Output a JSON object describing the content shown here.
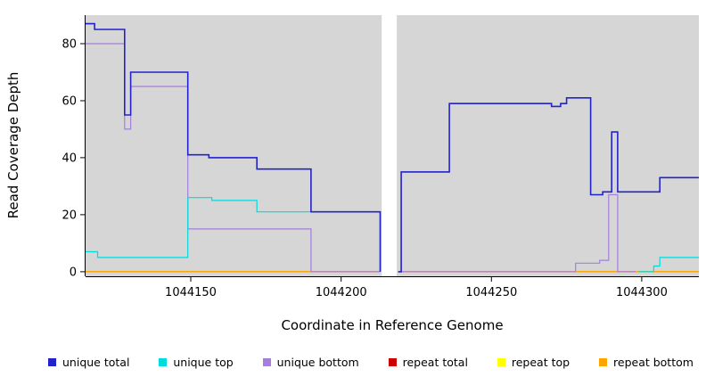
{
  "chart_data": {
    "type": "line",
    "step": true,
    "title": "",
    "xlabel": "Coordinate in Reference Genome",
    "ylabel": "Read Coverage Depth",
    "xlim": [
      1044115,
      1044319
    ],
    "ylim": [
      -1.6,
      90
    ],
    "x_ticks": [
      1044150,
      1044200,
      1044250,
      1044300
    ],
    "y_ticks": [
      0,
      20,
      40,
      60,
      80
    ],
    "grid": false,
    "legend_position": "bottom",
    "panel_background": "#d6d6d6",
    "axis_color": "#000000",
    "gap_region": {
      "x0": 1044213.5,
      "x1": 1044218.5,
      "color": "#ffffff"
    },
    "series": [
      {
        "name": "unique total",
        "color": "#2323cc",
        "width": 1.6,
        "zorder": 6,
        "segments": [
          [
            [
              1044115,
              87
            ],
            [
              1044118,
              85
            ],
            [
              1044128,
              55
            ],
            [
              1044130,
              70
            ],
            [
              1044149,
              41
            ],
            [
              1044156,
              40
            ],
            [
              1044172,
              36
            ],
            [
              1044190,
              21
            ],
            [
              1044213,
              0
            ]
          ],
          [
            [
              1044219,
              0
            ],
            [
              1044220,
              35
            ],
            [
              1044236,
              59
            ],
            [
              1044270,
              58
            ],
            [
              1044273,
              59
            ],
            [
              1044275,
              61
            ],
            [
              1044283,
              27
            ],
            [
              1044287,
              28
            ],
            [
              1044290,
              49
            ],
            [
              1044292,
              28
            ],
            [
              1044306,
              33
            ],
            [
              1044319,
              33
            ]
          ]
        ]
      },
      {
        "name": "unique top",
        "color": "#00dcdc",
        "width": 1.2,
        "zorder": 5,
        "segments": [
          [
            [
              1044115,
              7
            ],
            [
              1044119,
              5
            ],
            [
              1044149,
              26
            ],
            [
              1044157,
              25
            ],
            [
              1044172,
              21
            ],
            [
              1044213,
              0
            ]
          ],
          [
            [
              1044299,
              0
            ],
            [
              1044304,
              2
            ],
            [
              1044306,
              5
            ],
            [
              1044319,
              5
            ]
          ]
        ]
      },
      {
        "name": "unique bottom",
        "color": "#a47fdc",
        "width": 1.2,
        "zorder": 4,
        "segments": [
          [
            [
              1044115,
              80
            ],
            [
              1044128,
              50
            ],
            [
              1044130,
              65
            ],
            [
              1044149,
              15
            ],
            [
              1044190,
              0
            ],
            [
              1044213,
              0
            ]
          ],
          [
            [
              1044219,
              0
            ],
            [
              1044278,
              3
            ],
            [
              1044286,
              4
            ],
            [
              1044289,
              27
            ],
            [
              1044292,
              0
            ],
            [
              1044298,
              0
            ]
          ]
        ]
      },
      {
        "name": "repeat total",
        "color": "#cc0000",
        "width": 1.2,
        "zorder": 1,
        "segments": [
          [
            [
              1044115,
              0
            ],
            [
              1044213,
              0
            ]
          ],
          [
            [
              1044219,
              0
            ],
            [
              1044319,
              0
            ]
          ]
        ]
      },
      {
        "name": "repeat top",
        "color": "#ffff00",
        "width": 1.2,
        "zorder": 2,
        "segments": [
          [
            [
              1044115,
              0
            ],
            [
              1044213,
              0
            ]
          ],
          [
            [
              1044219,
              0
            ],
            [
              1044319,
              0
            ]
          ]
        ]
      },
      {
        "name": "repeat bottom",
        "color": "#ffa500",
        "width": 1.2,
        "zorder": 3,
        "segments": [
          [
            [
              1044115,
              0
            ],
            [
              1044213,
              0
            ]
          ],
          [
            [
              1044219,
              0
            ],
            [
              1044319,
              0
            ]
          ]
        ]
      }
    ]
  }
}
